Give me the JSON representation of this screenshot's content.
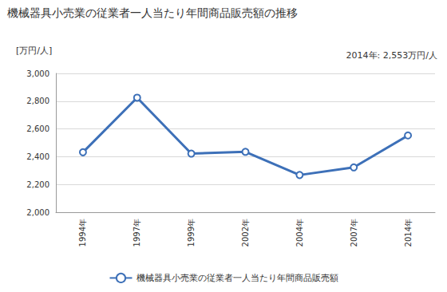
{
  "chart_data": {
    "type": "line",
    "title": "機械器具小売業の従業者一人当たり年間商品販売額の推移",
    "y_label": "[万円/人]",
    "annotation": "2014年: 2,553万円/人",
    "categories": [
      "1994年",
      "1997年",
      "1999年",
      "2002年",
      "2004年",
      "2007年",
      "2014年"
    ],
    "series": [
      {
        "name": "機械器具小売業の従業者一人当たり年間商品販売額",
        "color": "#3d70b8",
        "values": [
          2432,
          2825,
          2422,
          2435,
          2268,
          2323,
          2553
        ]
      }
    ],
    "ylim": [
      2000,
      3000
    ],
    "yticks": [
      {
        "value": 2000,
        "label": "2,000"
      },
      {
        "value": 2200,
        "label": "2,200"
      },
      {
        "value": 2400,
        "label": "2,400"
      },
      {
        "value": 2600,
        "label": "2,600"
      },
      {
        "value": 2800,
        "label": "2,800"
      },
      {
        "value": 3000,
        "label": "3,000"
      }
    ],
    "grid": true,
    "legend": "bottom",
    "marker": "circle"
  }
}
